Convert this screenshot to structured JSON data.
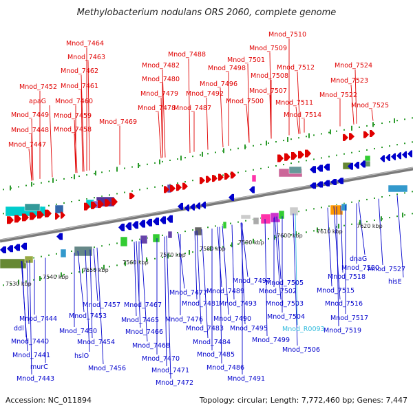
{
  "title": "Methylobacterium nodulans ORS 2060, complete genome",
  "footer": {
    "accession": "Accession: NC_011894",
    "topology": "Topology: circular; Length: 7,772,460 bp; Genes: 7,447"
  },
  "colors": {
    "forward": "#e00000",
    "reverse": "#0000cc",
    "rna": "#33bbdd",
    "backbone": "#888888"
  },
  "ticks": [
    "7530 kbp",
    "7540 kbp",
    "7550 kbp",
    "7560 kbp",
    "7570 kbp",
    "7580 kbp",
    "7590 kbp",
    "7600 kbp",
    "7610 kbp",
    "7620 kbp"
  ],
  "top_labels": [
    "Mnod_7464",
    "Mnod_7463",
    "Mnod_7462",
    "Mnod_7452",
    "Mnod_7461",
    "apaG",
    "Mnod_7460",
    "Mnod_7449",
    "Mnod_7459",
    "Mnod_7448",
    "Mnod_7458",
    "Mnod_7447",
    "Mnod_7469",
    "Mnod_7488",
    "Mnod_7482",
    "Mnod_7480",
    "Mnod_7479",
    "Mnod_7478",
    "Mnod_7487",
    "Mnod_7492",
    "Mnod_7496",
    "Mnod_7498",
    "Mnod_7501",
    "Mnod_7500",
    "Mnod_7510",
    "Mnod_7509",
    "Mnod_7512",
    "Mnod_7508",
    "Mnod_7507",
    "Mnod_7511",
    "Mnod_7514",
    "Mnod_7524",
    "Mnod_7523",
    "Mnod_7522",
    "Mnod_7525"
  ],
  "bottom_labels": [
    "Mnod_7444",
    "ddl",
    "Mnod_7440",
    "Mnod_7441",
    "murC",
    "Mnod_7443",
    "Mnod_7457",
    "Mnod_7453",
    "Mnod_7450",
    "Mnod_7454",
    "hslO",
    "Mnod_7456",
    "Mnod_7467",
    "Mnod_7465",
    "Mnod_7466",
    "Mnod_7468",
    "Mnod_7470",
    "Mnod_7471",
    "Mnod_7472",
    "Mnod_7477",
    "Mnod_7476",
    "Mnod_7481",
    "Mnod_7483",
    "Mnod_7484",
    "Mnod_7485",
    "Mnod_7486",
    "Mnod_7489",
    "Mnod_7490",
    "Mnod_7491",
    "Mnod_7493",
    "Mnod_7495",
    "Mnod_7497",
    "Mnod_7502",
    "Mnod_7499",
    "Mnod_7505",
    "Mnod_7503",
    "Mnod_7504",
    "Mnod_R0093",
    "Mnod_7506",
    "dnaG",
    "Mnod_7520",
    "Mnod_7518",
    "Mnod_7515",
    "Mnod_7516",
    "Mnod_7517",
    "Mnod_7519",
    "Mnod_7527",
    "hisE"
  ]
}
